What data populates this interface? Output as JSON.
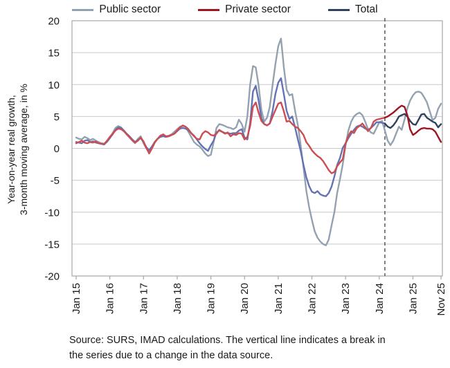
{
  "legend": {
    "items": [
      {
        "label": "Public sector",
        "color": "#93A2B1"
      },
      {
        "label": "Private sector",
        "color": "#A01420"
      },
      {
        "label": "Total",
        "color": "#31405C"
      }
    ]
  },
  "source_note": "Source: SURS, IMAD calculations. The vertical line indicates a break in the series due to a change in the data source.",
  "chart_data": {
    "type": "line",
    "title": "",
    "ylabel_line1": "Year-on-year real growth,",
    "ylabel_line2": "3-month moving average, in %",
    "ylim": [
      -20,
      20
    ],
    "ytick_step": 5,
    "grid": true,
    "legend_position": "top",
    "break_line_index": 110,
    "x_ticks": [
      {
        "index": 0,
        "label": "Jan 15"
      },
      {
        "index": 12,
        "label": "Jan 16"
      },
      {
        "index": 24,
        "label": "Jan 17"
      },
      {
        "index": 36,
        "label": "Jan 18"
      },
      {
        "index": 48,
        "label": "Jan 19"
      },
      {
        "index": 60,
        "label": "Jan 20"
      },
      {
        "index": 72,
        "label": "Jan 21"
      },
      {
        "index": 84,
        "label": "Jan 22"
      },
      {
        "index": 96,
        "label": "Jan 23"
      },
      {
        "index": 108,
        "label": "Jan 24"
      },
      {
        "index": 120,
        "label": "Jan 25"
      },
      {
        "index": 130,
        "label": "Nov 25"
      }
    ],
    "colors": {
      "grid": "#C9C9C9",
      "axis": "#A6A6A6",
      "break_line": "#4D4D4D",
      "text": "#1A1A1A"
    },
    "series": [
      {
        "name": "Public sector",
        "color": "#93A2B1",
        "values": [
          1.7,
          1.5,
          1.4,
          1.8,
          1.6,
          1.3,
          1.5,
          1.2,
          1.0,
          0.8,
          0.7,
          1.0,
          1.6,
          2.4,
          3.2,
          3.5,
          3.3,
          2.8,
          2.2,
          1.7,
          1.2,
          0.8,
          1.5,
          1.9,
          0.8,
          0.0,
          -0.4,
          0.2,
          1.0,
          1.5,
          1.9,
          2.0,
          1.9,
          2.0,
          2.2,
          2.6,
          3.0,
          3.4,
          3.5,
          3.4,
          2.6,
          1.8,
          1.0,
          0.6,
          0.3,
          -0.2,
          -0.8,
          -1.2,
          -1.0,
          1.0,
          3.2,
          3.8,
          3.7,
          3.5,
          3.3,
          3.2,
          3.0,
          3.3,
          4.5,
          3.8,
          2.6,
          5.0,
          10.0,
          12.9,
          12.7,
          9.9,
          6.0,
          4.2,
          4.8,
          6.5,
          10.0,
          13.2,
          16.0,
          17.2,
          12.7,
          9.2,
          8.3,
          8.5,
          5.9,
          3.6,
          0.5,
          -3.0,
          -6.6,
          -9.2,
          -11.2,
          -13.0,
          -14.0,
          -14.6,
          -15.0,
          -15.2,
          -14.3,
          -12.1,
          -10.0,
          -7.0,
          -4.8,
          -2.5,
          0.5,
          2.8,
          4.2,
          5.0,
          5.4,
          5.6,
          5.2,
          4.2,
          3.0,
          2.5,
          2.3,
          3.2,
          4.1,
          4.3,
          2.8,
          1.2,
          0.5,
          1.2,
          2.3,
          3.4,
          2.9,
          4.5,
          6.3,
          7.5,
          8.3,
          8.8,
          8.9,
          8.7,
          8.0,
          7.2,
          5.8,
          4.4,
          4.8,
          6.2,
          7.0
        ]
      },
      {
        "name": "Total (pre-break)",
        "color": "#6472B4",
        "values": [
          1.0,
          0.9,
          0.8,
          1.2,
          1.3,
          1.0,
          1.1,
          0.9,
          0.8,
          0.7,
          0.6,
          1.1,
          1.6,
          2.2,
          2.9,
          3.3,
          3.2,
          2.8,
          2.3,
          1.9,
          1.4,
          1.0,
          1.3,
          1.6,
          1.0,
          0.2,
          -0.3,
          0.3,
          1.0,
          1.5,
          1.8,
          1.9,
          1.8,
          1.9,
          2.1,
          2.3,
          2.7,
          3.1,
          3.2,
          3.1,
          2.8,
          2.4,
          2.0,
          1.4,
          0.8,
          0.3,
          -0.1,
          -0.4,
          0.5,
          1.2,
          2.5,
          2.8,
          2.6,
          2.4,
          2.4,
          2.3,
          2.4,
          2.4,
          2.8,
          3.0,
          1.7,
          1.4,
          4.0,
          8.9,
          9.8,
          7.5,
          4.7,
          3.8,
          3.6,
          3.9,
          5.9,
          8.5,
          10.3,
          11.0,
          8.5,
          5.9,
          4.6,
          5.0,
          3.3,
          1.4,
          -0.4,
          -2.6,
          -4.5,
          -5.9,
          -6.8,
          -7.0,
          -6.7,
          -7.2,
          -7.4,
          -7.5,
          -7.0,
          -6.0,
          -4.4,
          -2.6,
          -1.5,
          0.1,
          0.8,
          1.6,
          2.3,
          2.9,
          3.4,
          3.6,
          3.4,
          3.1,
          2.9,
          3.2,
          3.6,
          4.1,
          4.1,
          4.0,
          3.9,
          null,
          null,
          null,
          null,
          null,
          null,
          null,
          null,
          null,
          null,
          null,
          null,
          null,
          null,
          null,
          null,
          null,
          null,
          null,
          null
        ]
      },
      {
        "name": "Private sector (pre-break)",
        "color": "#CC4C50",
        "values": [
          0.8,
          1.0,
          1.2,
          0.9,
          0.8,
          1.0,
          0.9,
          1.1,
          0.8,
          0.7,
          0.7,
          1.2,
          1.8,
          2.3,
          2.8,
          3.1,
          3.0,
          2.7,
          2.2,
          1.8,
          1.3,
          0.9,
          1.2,
          1.7,
          1.1,
          0.1,
          -0.8,
          0.0,
          0.9,
          1.5,
          2.0,
          2.2,
          1.9,
          1.9,
          2.1,
          2.3,
          2.8,
          3.3,
          3.6,
          3.4,
          3.0,
          2.4,
          1.9,
          1.5,
          1.4,
          2.3,
          2.7,
          2.5,
          2.1,
          2.0,
          2.3,
          2.9,
          2.6,
          2.3,
          2.5,
          1.9,
          2.2,
          2.1,
          2.4,
          2.3,
          1.4,
          1.8,
          3.5,
          6.5,
          7.2,
          5.6,
          4.3,
          3.8,
          3.6,
          3.9,
          5.0,
          6.0,
          7.0,
          7.2,
          5.8,
          4.2,
          4.3,
          3.8,
          3.4,
          3.2,
          2.7,
          2.1,
          1.0,
          0.4,
          -0.3,
          -0.8,
          -1.2,
          -1.5,
          -2.0,
          -2.7,
          -3.4,
          -3.9,
          -3.7,
          -2.8,
          -2.2,
          -1.7,
          0.8,
          2.0,
          2.7,
          2.4,
          3.2,
          3.5,
          3.9,
          3.3,
          2.7,
          3.2,
          4.2,
          4.5,
          4.6,
          4.7,
          4.8,
          null,
          null,
          null,
          null,
          null,
          null,
          null,
          null,
          null,
          null,
          null,
          null,
          null,
          null,
          null,
          null,
          null,
          null,
          null,
          null
        ]
      },
      {
        "name": "Total (post-break)",
        "color": "#31405C",
        "values": [
          null,
          null,
          null,
          null,
          null,
          null,
          null,
          null,
          null,
          null,
          null,
          null,
          null,
          null,
          null,
          null,
          null,
          null,
          null,
          null,
          null,
          null,
          null,
          null,
          null,
          null,
          null,
          null,
          null,
          null,
          null,
          null,
          null,
          null,
          null,
          null,
          null,
          null,
          null,
          null,
          null,
          null,
          null,
          null,
          null,
          null,
          null,
          null,
          null,
          null,
          null,
          null,
          null,
          null,
          null,
          null,
          null,
          null,
          null,
          null,
          null,
          null,
          null,
          null,
          null,
          null,
          null,
          null,
          null,
          null,
          null,
          null,
          null,
          null,
          null,
          null,
          null,
          null,
          null,
          null,
          null,
          null,
          null,
          null,
          null,
          null,
          null,
          null,
          null,
          null,
          null,
          null,
          null,
          null,
          null,
          null,
          null,
          null,
          null,
          null,
          null,
          null,
          null,
          null,
          null,
          null,
          null,
          null,
          null,
          null,
          3.9,
          3.4,
          3.2,
          3.6,
          4.2,
          5.0,
          5.2,
          5.4,
          5.0,
          4.3,
          3.8,
          3.7,
          4.5,
          5.3,
          5.4,
          4.8,
          4.5,
          4.2,
          4.0,
          3.3,
          3.8
        ]
      },
      {
        "name": "Private sector (post-break)",
        "color": "#A01420",
        "values": [
          null,
          null,
          null,
          null,
          null,
          null,
          null,
          null,
          null,
          null,
          null,
          null,
          null,
          null,
          null,
          null,
          null,
          null,
          null,
          null,
          null,
          null,
          null,
          null,
          null,
          null,
          null,
          null,
          null,
          null,
          null,
          null,
          null,
          null,
          null,
          null,
          null,
          null,
          null,
          null,
          null,
          null,
          null,
          null,
          null,
          null,
          null,
          null,
          null,
          null,
          null,
          null,
          null,
          null,
          null,
          null,
          null,
          null,
          null,
          null,
          null,
          null,
          null,
          null,
          null,
          null,
          null,
          null,
          null,
          null,
          null,
          null,
          null,
          null,
          null,
          null,
          null,
          null,
          null,
          null,
          null,
          null,
          null,
          null,
          null,
          null,
          null,
          null,
          null,
          null,
          null,
          null,
          null,
          null,
          null,
          null,
          null,
          null,
          null,
          null,
          null,
          null,
          null,
          null,
          null,
          null,
          null,
          null,
          null,
          null,
          4.8,
          5.0,
          5.3,
          5.6,
          6.0,
          6.4,
          6.7,
          6.5,
          5.2,
          3.0,
          2.1,
          2.4,
          2.8,
          3.1,
          3.2,
          3.1,
          3.1,
          3.0,
          2.6,
          1.8,
          1.0
        ]
      }
    ]
  }
}
